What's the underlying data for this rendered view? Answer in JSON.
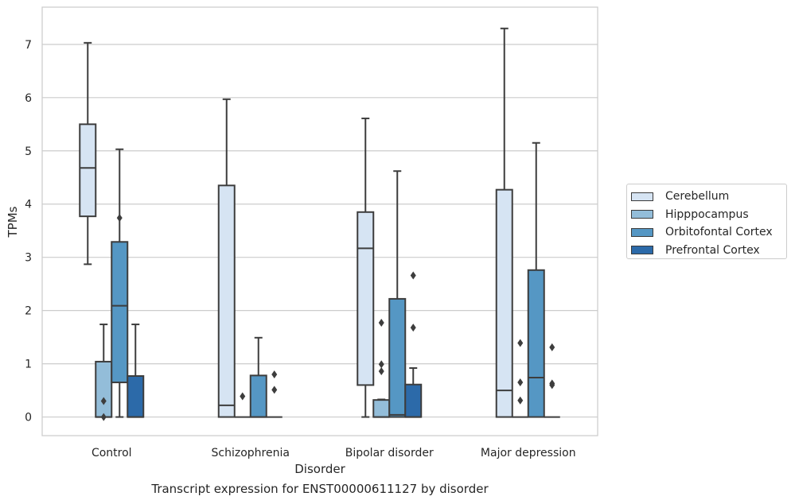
{
  "chart_data": {
    "type": "box",
    "ylabel": "TPMs",
    "xlabel": "Disorder",
    "caption": "Transcript expression for ENST00000611127 by disorder",
    "ylim": [
      -0.35,
      7.7
    ],
    "yticks": [
      "0",
      "1",
      "2",
      "3",
      "4",
      "5",
      "6",
      "7"
    ],
    "categories": [
      "Control",
      "Schizophrenia",
      "Bipolar disorder",
      "Major depression"
    ],
    "grid": true,
    "legend_position": "right",
    "series": [
      {
        "name": "Cerebellum",
        "color": "#d6e4f3",
        "boxes": [
          {
            "min": 2.87,
            "q1": 3.77,
            "median": 4.68,
            "q3": 5.5,
            "max": 7.03,
            "outliers": []
          },
          {
            "min": 0.0,
            "q1": 0.0,
            "median": 0.22,
            "q3": 4.35,
            "max": 5.97,
            "outliers": []
          },
          {
            "min": 0.0,
            "q1": 0.6,
            "median": 3.17,
            "q3": 3.85,
            "max": 5.61,
            "outliers": []
          },
          {
            "min": 0.0,
            "q1": 0.0,
            "median": 0.5,
            "q3": 4.27,
            "max": 7.3,
            "outliers": []
          }
        ]
      },
      {
        "name": "Hipppocampus",
        "color": "#93bdd9",
        "boxes": [
          {
            "min": 0.0,
            "q1": 0.0,
            "median": 0.0,
            "q3": 1.04,
            "max": 1.74,
            "outliers": [
              0.3,
              0.0
            ]
          },
          {
            "min": 0.0,
            "q1": 0.0,
            "median": 0.0,
            "q3": 0.0,
            "max": 0.0,
            "outliers": [
              0.39
            ]
          },
          {
            "min": 0.0,
            "q1": 0.0,
            "median": 0.0,
            "q3": 0.32,
            "max": 0.33,
            "outliers": [
              1.77,
              0.99,
              0.86
            ]
          },
          {
            "min": 0.0,
            "q1": 0.0,
            "median": 0.0,
            "q3": 0.0,
            "max": 0.0,
            "outliers": [
              1.39,
              0.65,
              0.31
            ]
          }
        ]
      },
      {
        "name": "Orbitofontal Cortex",
        "color": "#5597c4",
        "boxes": [
          {
            "min": 0.0,
            "q1": 0.65,
            "median": 2.09,
            "q3": 3.29,
            "max": 5.03,
            "outliers": [
              3.74
            ]
          },
          {
            "min": 0.0,
            "q1": 0.0,
            "median": 0.0,
            "q3": 0.78,
            "max": 1.49,
            "outliers": []
          },
          {
            "min": 0.0,
            "q1": 0.0,
            "median": 0.04,
            "q3": 2.22,
            "max": 4.62,
            "outliers": []
          },
          {
            "min": 0.0,
            "q1": 0.0,
            "median": 0.74,
            "q3": 2.76,
            "max": 5.15,
            "outliers": []
          }
        ]
      },
      {
        "name": "Prefrontal Cortex",
        "color": "#2c6aa9",
        "boxes": [
          {
            "min": 0.0,
            "q1": 0.0,
            "median": 0.0,
            "q3": 0.77,
            "max": 1.74,
            "outliers": []
          },
          {
            "min": 0.0,
            "q1": 0.0,
            "median": 0.0,
            "q3": 0.0,
            "max": 0.0,
            "outliers": [
              0.8,
              0.51
            ]
          },
          {
            "min": 0.0,
            "q1": 0.0,
            "median": 0.0,
            "q3": 0.61,
            "max": 0.92,
            "outliers": [
              2.66,
              1.68
            ]
          },
          {
            "min": 0.0,
            "q1": 0.0,
            "median": 0.0,
            "q3": 0.0,
            "max": 0.0,
            "outliers": [
              1.31,
              0.63,
              0.6
            ]
          }
        ]
      }
    ]
  }
}
